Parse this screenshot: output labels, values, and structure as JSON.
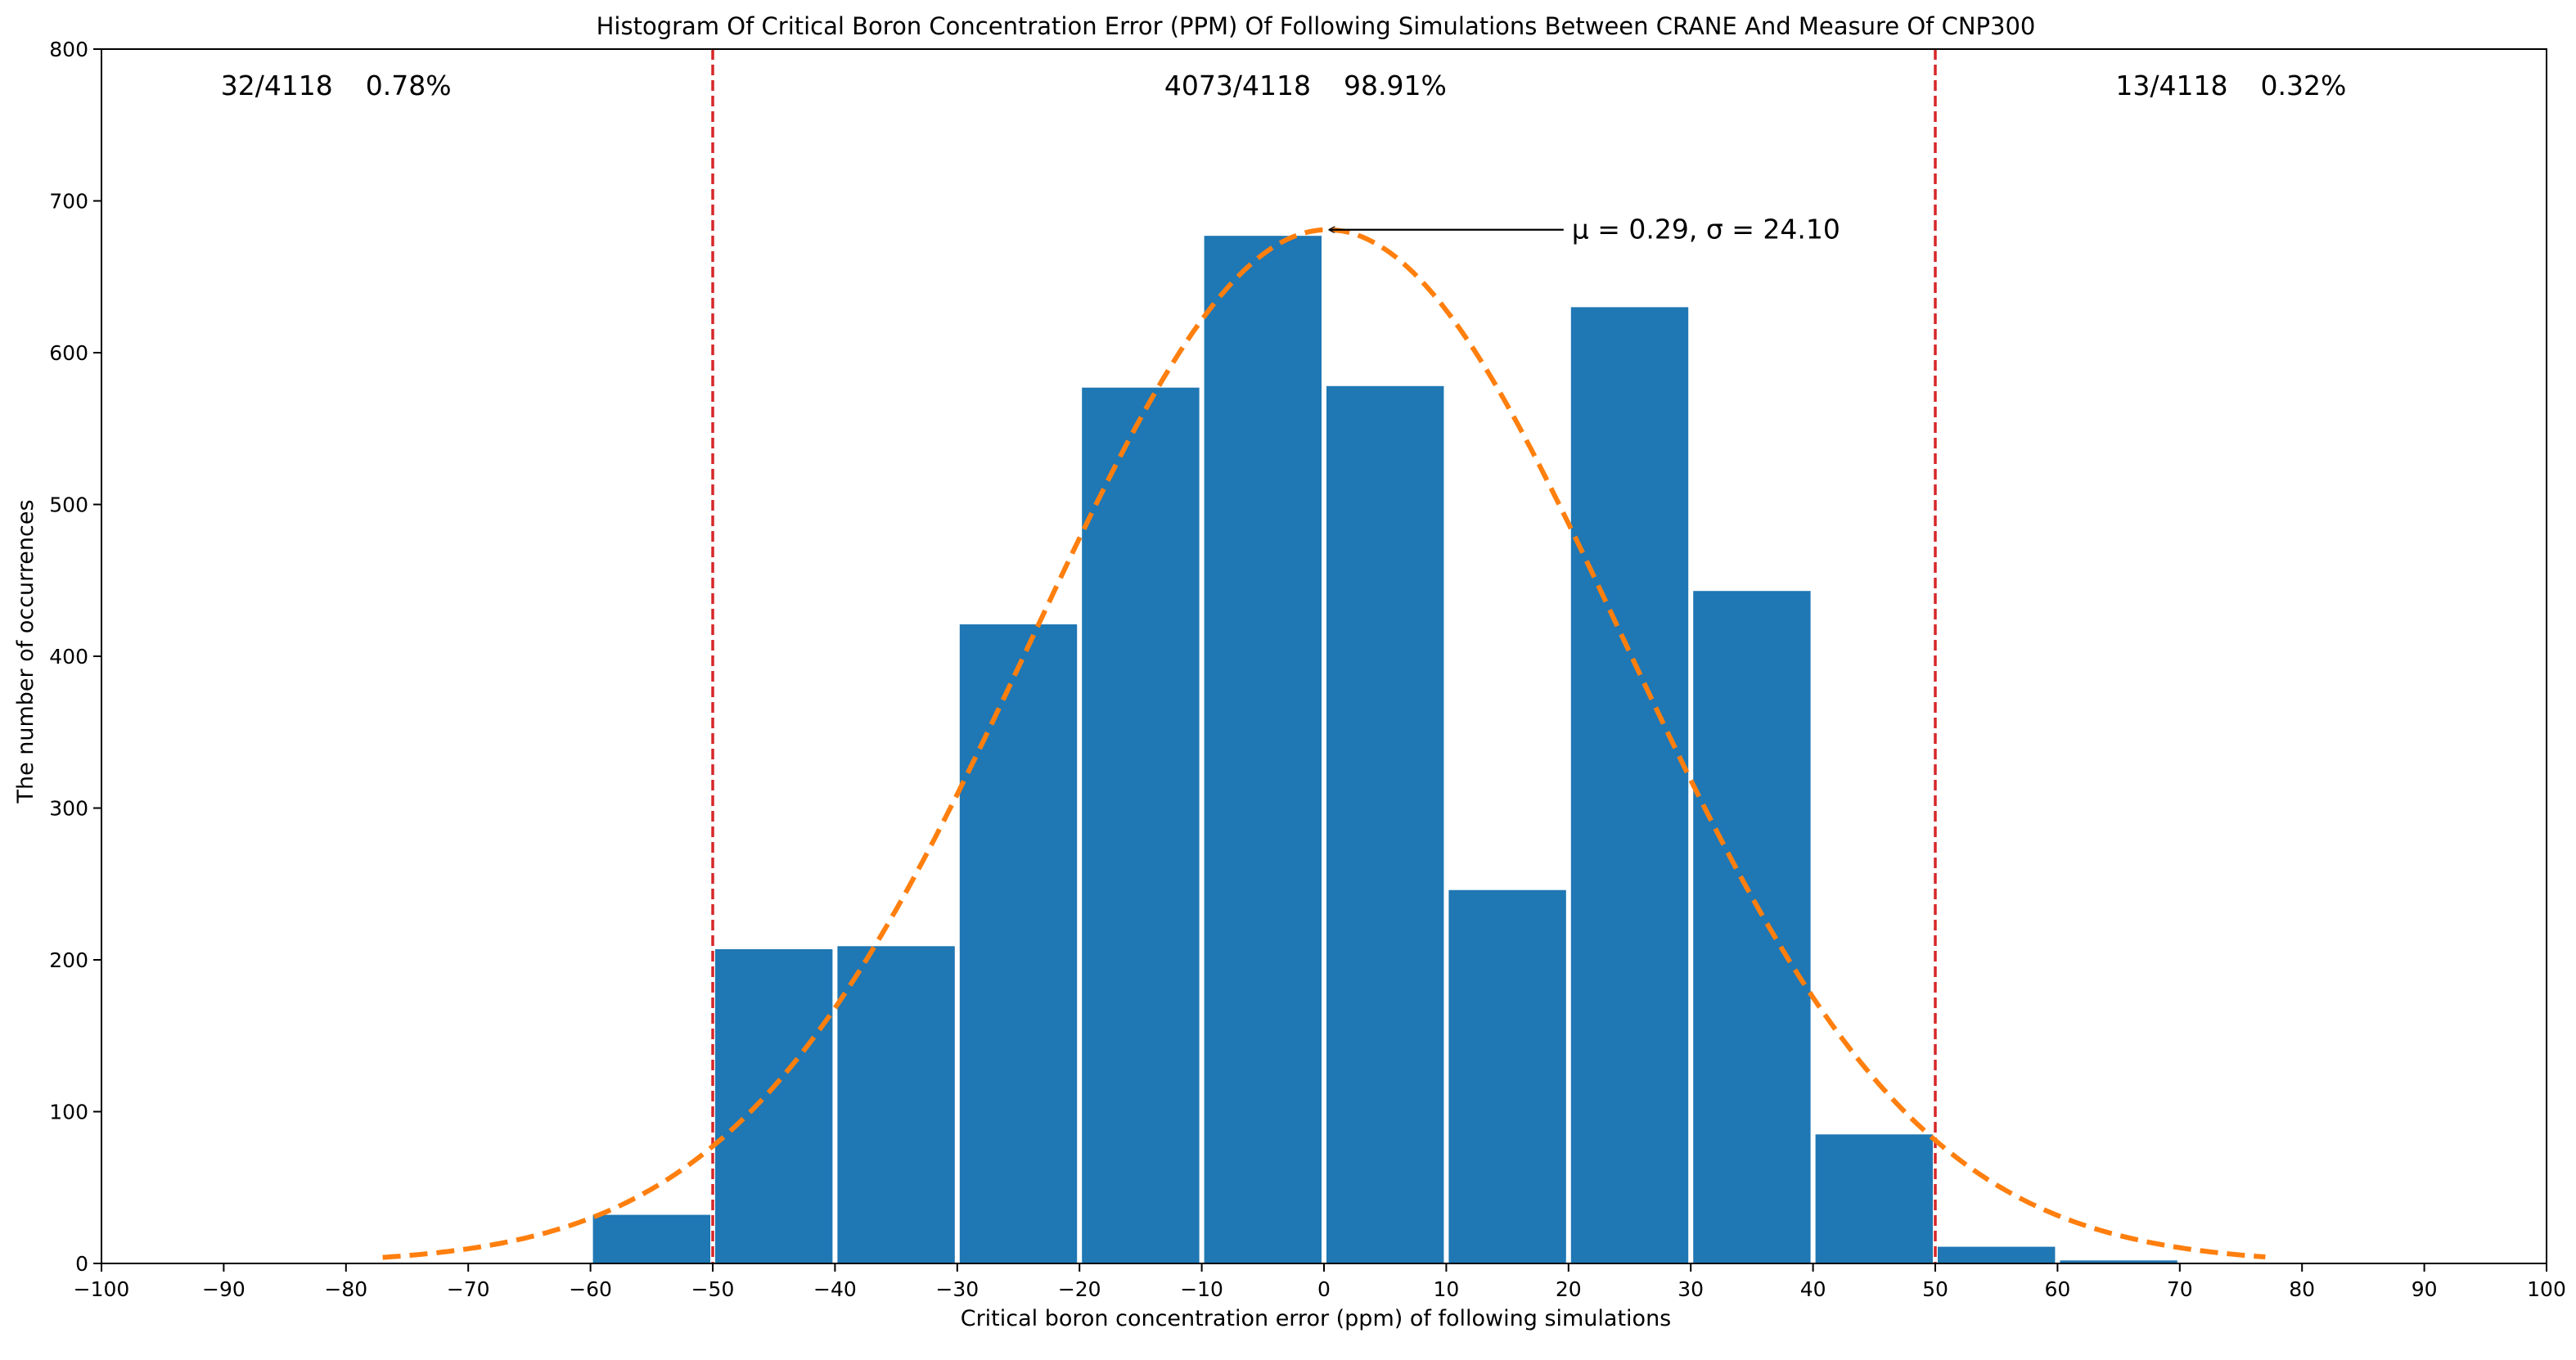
{
  "chart_data": {
    "type": "bar",
    "title": "Histogram Of Critical Boron Concentration Error (PPM) Of Following Simulations Between CRANE And Measure Of CNP300",
    "xlabel": "Critical boron concentration error (ppm) of following simulations",
    "ylabel": "The number of occurrences",
    "xlim": [
      -100,
      100
    ],
    "ylim": [
      0,
      800
    ],
    "xticks": [
      -100,
      -90,
      -80,
      -70,
      -60,
      -50,
      -40,
      -30,
      -20,
      -10,
      0,
      10,
      20,
      30,
      40,
      50,
      60,
      70,
      80,
      90,
      100
    ],
    "xtick_labels": [
      "−100",
      "−90",
      "−80",
      "−70",
      "−60",
      "−50",
      "−40",
      "−30",
      "−20",
      "−10",
      "0",
      "10",
      "20",
      "30",
      "40",
      "50",
      "60",
      "70",
      "80",
      "90",
      "100"
    ],
    "yticks": [
      0,
      100,
      200,
      300,
      400,
      500,
      600,
      700,
      800
    ],
    "ytick_labels": [
      "0",
      "100",
      "200",
      "300",
      "400",
      "500",
      "600",
      "700",
      "800"
    ],
    "bins": [
      {
        "start": -60,
        "end": -50,
        "value": 32
      },
      {
        "start": -50,
        "end": -40,
        "value": 207
      },
      {
        "start": -40,
        "end": -30,
        "value": 209
      },
      {
        "start": -30,
        "end": -20,
        "value": 421
      },
      {
        "start": -20,
        "end": -10,
        "value": 577
      },
      {
        "start": -10,
        "end": 0,
        "value": 677
      },
      {
        "start": 0,
        "end": 10,
        "value": 578
      },
      {
        "start": 10,
        "end": 20,
        "value": 246
      },
      {
        "start": 20,
        "end": 30,
        "value": 630
      },
      {
        "start": 30,
        "end": 40,
        "value": 443
      },
      {
        "start": 40,
        "end": 50,
        "value": 85
      },
      {
        "start": 50,
        "end": 60,
        "value": 11
      },
      {
        "start": 60,
        "end": 70,
        "value": 2
      }
    ],
    "fit": {
      "mu": 0.29,
      "sigma": 24.1,
      "peak": 681,
      "x_range": [
        -77,
        77
      ]
    },
    "thresholds": [
      -50,
      50
    ],
    "region_labels": [
      {
        "count": "32/4118",
        "percent": "0.78%",
        "center_x": -80
      },
      {
        "count": "4073/4118",
        "percent": "98.91%",
        "center_x": 0
      },
      {
        "count": "13/4118",
        "percent": "0.32%",
        "center_x": 75
      }
    ],
    "annotation": {
      "text": "μ = 0.29, σ = 24.10",
      "xy": [
        0.29,
        681
      ],
      "text_xy": [
        20,
        681
      ]
    },
    "colors": {
      "bar": "#1f77b4",
      "fit": "#ff7f0e",
      "threshold": "#d62728"
    }
  }
}
